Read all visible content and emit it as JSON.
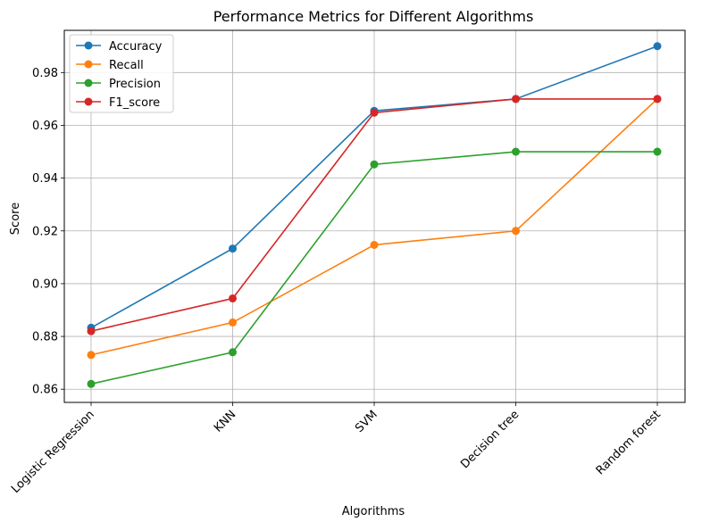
{
  "chart_data": {
    "type": "line",
    "title": "Performance Metrics for Different Algorithms",
    "xlabel": "Algorithms",
    "ylabel": "Score",
    "categories": [
      "Logistic Regression",
      "KNN",
      "SVM",
      "Decision tree",
      "Random forest"
    ],
    "ylim": [
      0.855,
      0.996
    ],
    "yticks": [
      0.86,
      0.88,
      0.9,
      0.92,
      0.94,
      0.96,
      0.98
    ],
    "ytick_labels": [
      "0.86",
      "0.88",
      "0.90",
      "0.92",
      "0.94",
      "0.96",
      "0.98"
    ],
    "grid": true,
    "legend_position": "top-left",
    "xtick_rotation": 45,
    "series": [
      {
        "name": "Accuracy",
        "color": "#1f77b4",
        "values": [
          0.8833,
          0.9133,
          0.9655,
          0.97,
          0.99
        ]
      },
      {
        "name": "Recall",
        "color": "#ff7f0e",
        "values": [
          0.873,
          0.8853,
          0.9147,
          0.92,
          0.97
        ]
      },
      {
        "name": "Precision",
        "color": "#2ca02c",
        "values": [
          0.862,
          0.874,
          0.9452,
          0.95,
          0.95
        ]
      },
      {
        "name": "F1_score",
        "color": "#d62728",
        "values": [
          0.882,
          0.8944,
          0.9648,
          0.97,
          0.97
        ]
      }
    ]
  }
}
